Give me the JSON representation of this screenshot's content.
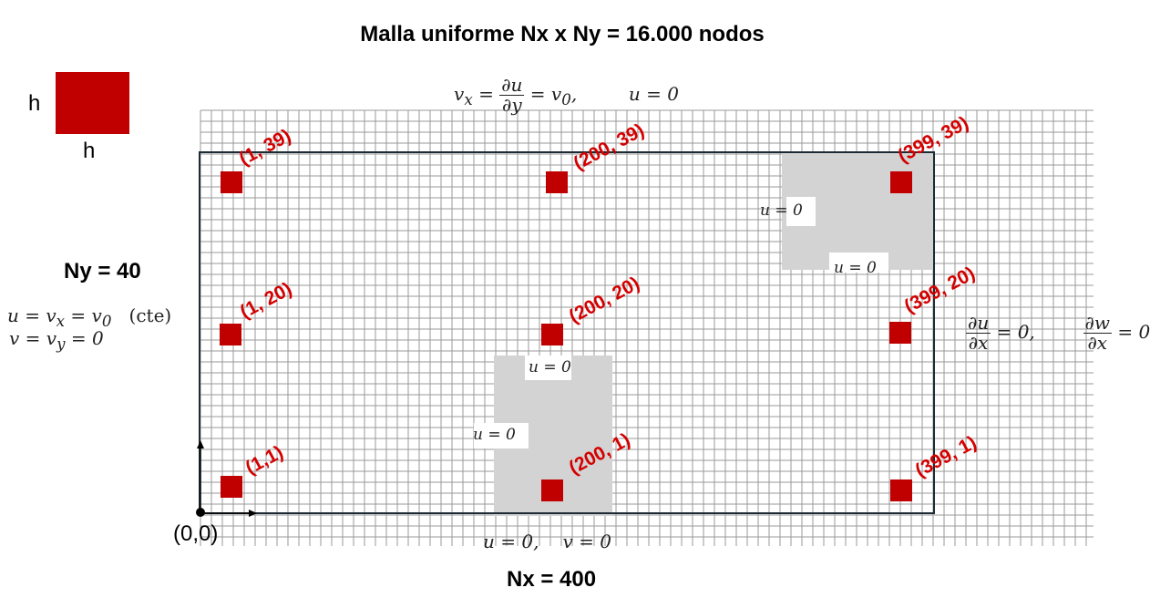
{
  "title": "Malla uniforme Nx x Ny = 16.000 nodos",
  "cell": {
    "side_label": "h",
    "bottom_label": "h",
    "color": "#c00000"
  },
  "ny_label": "Ny = 40",
  "nx_label": "Nx = 400",
  "origin_label": "(0,0)",
  "left_bc": {
    "line1": {
      "lhs": "u = v",
      "sub": "x",
      "mid": " = v",
      "sub2": "0",
      "note": "(cte)"
    },
    "line2": {
      "lhs": "v = v",
      "sub": "y",
      "rhs": " = 0"
    }
  },
  "top_bc": {
    "lhs": "v",
    "sub": "x",
    "eq": " = ",
    "num": "∂u",
    "den": "∂y",
    "rhs": " = v",
    "sub2": "0",
    "tail": ",",
    "second": "u = 0"
  },
  "right_bc": {
    "num1": "∂u",
    "den1": "∂x",
    "rhs1": " = 0,",
    "num2": "∂w",
    "den2": "∂x",
    "rhs2": " = 0"
  },
  "bottom_bc": {
    "part1": "u = 0,",
    "part2": "v = 0"
  },
  "obstacle_top": {
    "left_bc": "u = 0",
    "bottom_bc": "u = 0"
  },
  "obstacle_bottom": {
    "top_bc": "u = 0",
    "left_bc": "u = 0"
  },
  "nodes": [
    {
      "label": "(1, 39)"
    },
    {
      "label": "(200, 39)"
    },
    {
      "label": "(399, 39)"
    },
    {
      "label": "(1, 20)"
    },
    {
      "label": "(200, 20)"
    },
    {
      "label": "(399, 20)"
    },
    {
      "label": "(1,1)"
    },
    {
      "label": "(200, 1)"
    },
    {
      "label": "(399, 1)"
    }
  ],
  "colors": {
    "node": "#c00000",
    "node_label": "#d40000",
    "obstacle": "#d3d3d3",
    "grid": "#9a9a9a",
    "domain": "#1c2b33"
  }
}
